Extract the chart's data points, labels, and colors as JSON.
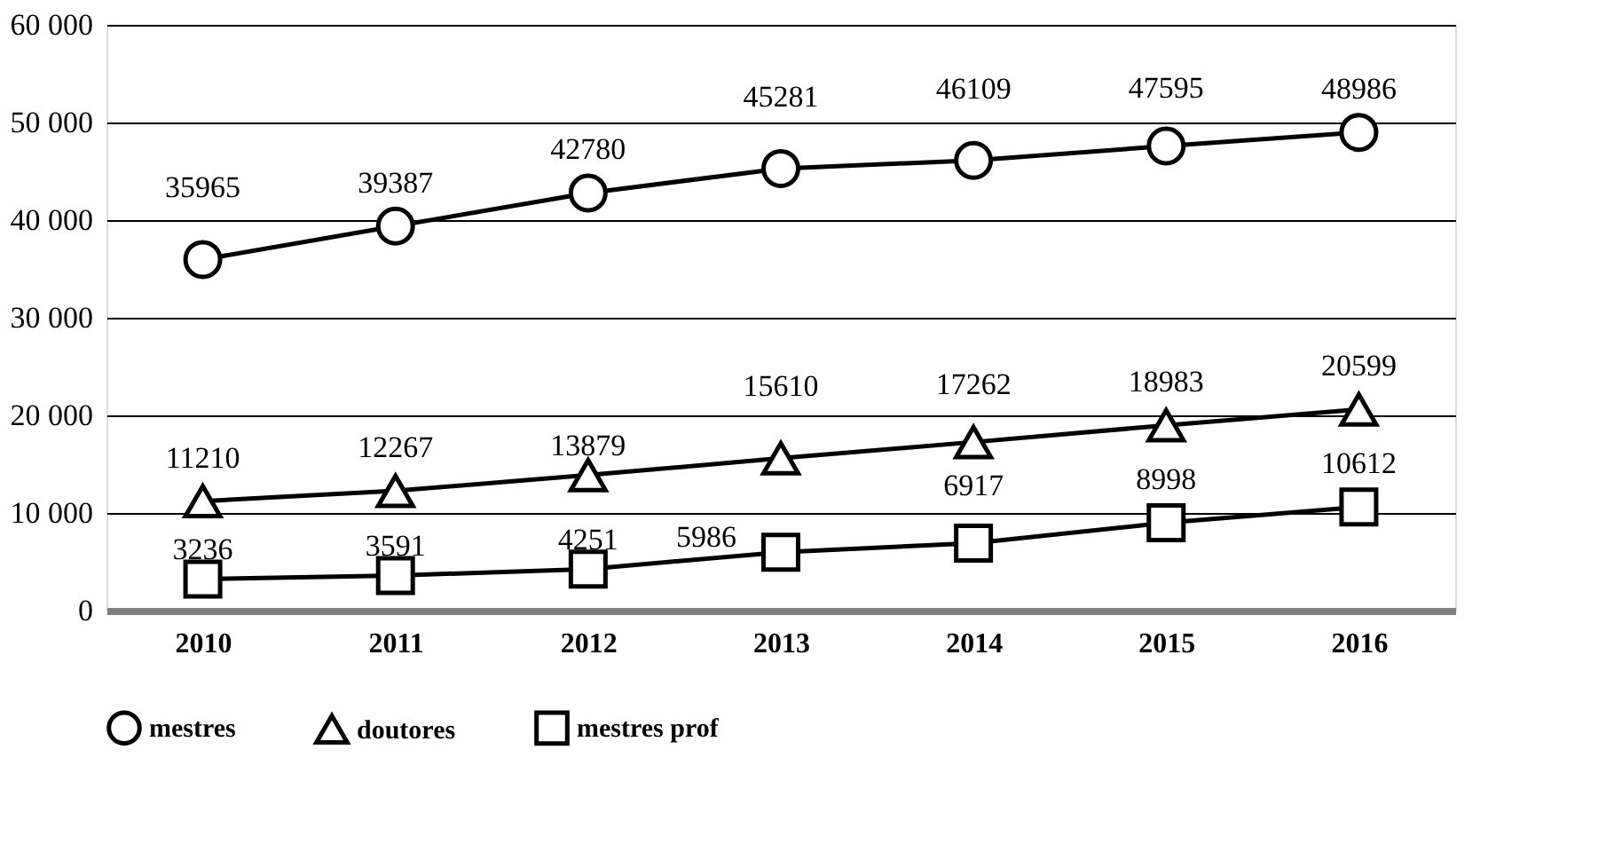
{
  "chart_data": {
    "type": "line",
    "categories": [
      "2010",
      "2011",
      "2012",
      "2013",
      "2014",
      "2015",
      "2016"
    ],
    "series": [
      {
        "name": "mestres",
        "color": "#000000",
        "marker": "circle",
        "values": [
          35965,
          39387,
          42780,
          45281,
          46109,
          47595,
          48986
        ]
      },
      {
        "name": "doutores",
        "color": "#000000",
        "marker": "triangle",
        "values": [
          11210,
          12267,
          13879,
          15610,
          17262,
          18983,
          20599
        ]
      },
      {
        "name": "mestres prof",
        "color": "#000000",
        "marker": "square",
        "values": [
          3236,
          3591,
          4251,
          5986,
          6917,
          8998,
          10612
        ]
      }
    ],
    "ylim": [
      0,
      60000
    ],
    "yticks": [
      {
        "value": 0,
        "label": "0"
      },
      {
        "value": 10000,
        "label": "10 000"
      },
      {
        "value": 20000,
        "label": "20 000"
      },
      {
        "value": 30000,
        "label": "30 000"
      },
      {
        "value": 40000,
        "label": "40 000"
      },
      {
        "value": 50000,
        "label": "50 000"
      },
      {
        "value": 60000,
        "label": "60 000"
      }
    ],
    "grid": "y",
    "legend": "bottom",
    "data_labels": true,
    "line_style": "solid"
  }
}
